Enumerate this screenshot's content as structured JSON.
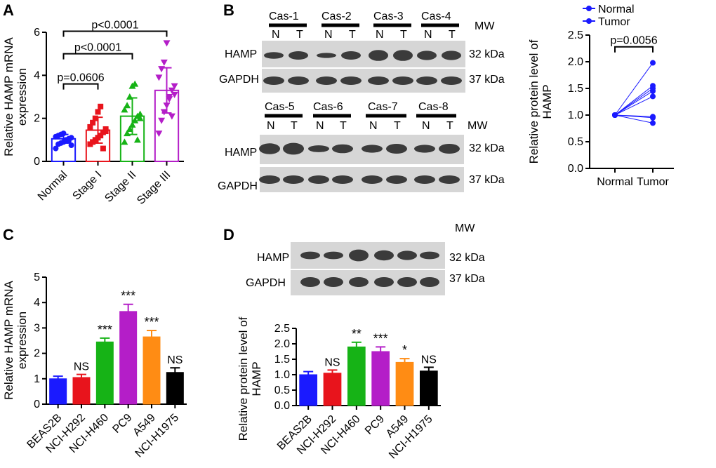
{
  "panels": [
    "A",
    "B",
    "C",
    "D"
  ],
  "chart_data": [
    {
      "id": "A",
      "type": "bar",
      "ylabel": "Relative HAMP mRNA expression",
      "ylim": [
        0,
        6
      ],
      "yticks": [
        0,
        2,
        4,
        6
      ],
      "categories": [
        "Normal",
        "Stage I",
        "Stage II",
        "Stage III"
      ],
      "values": [
        1.05,
        1.45,
        2.1,
        3.3
      ],
      "errors": [
        0.2,
        0.6,
        0.85,
        1.05
      ],
      "colors": [
        "#1a1aff",
        "#e8141c",
        "#16b316",
        "#b41ec8"
      ],
      "points": [
        [
          0.6,
          0.8,
          0.85,
          0.9,
          1.0,
          1.05,
          1.1,
          1.15,
          1.2,
          1.25,
          1.3,
          1.0,
          0.95,
          0.75
        ],
        [
          0.8,
          0.9,
          1.0,
          1.1,
          1.2,
          1.35,
          1.4,
          1.6,
          1.8,
          2.0,
          2.3,
          2.55,
          0.6,
          1.5
        ],
        [
          0.9,
          1.3,
          1.5,
          1.7,
          1.9,
          2.1,
          2.2,
          2.4,
          2.6,
          3.0,
          3.5,
          3.6,
          1.0,
          2.0
        ],
        [
          1.3,
          1.9,
          2.3,
          2.6,
          3.0,
          3.3,
          3.5,
          3.9,
          4.3,
          4.6,
          5.5,
          2.9,
          2.1,
          3.1
        ]
      ],
      "comparisons": [
        {
          "label": "p=0.0606",
          "from": 0,
          "to": 1,
          "y": 3.6
        },
        {
          "label": "p<0.0001",
          "from": 0,
          "to": 2,
          "y": 5.0
        },
        {
          "label": "p<0.0001",
          "from": 0,
          "to": 3,
          "y": 6.05
        }
      ]
    },
    {
      "id": "B",
      "type": "line",
      "ylabel": "Relative protein level of HAMP",
      "ylim": [
        0,
        2.5
      ],
      "yticks": [
        0.0,
        0.5,
        1.0,
        1.5,
        2.0,
        2.5
      ],
      "categories": [
        "Normal",
        "Tumor"
      ],
      "legend": [
        "Normal",
        "Tumor"
      ],
      "legend_position": "top-right",
      "color": "#1a1aff",
      "pairs": [
        [
          1,
          1.98
        ],
        [
          1,
          1.55
        ],
        [
          1,
          1.5
        ],
        [
          1,
          1.45
        ],
        [
          1,
          1.35
        ],
        [
          1,
          0.97
        ],
        [
          1,
          0.95
        ],
        [
          1,
          0.85
        ]
      ],
      "comparison": {
        "label": "p=0.0056",
        "y": 2.28
      }
    },
    {
      "id": "C",
      "type": "bar",
      "ylabel": "Relative HAMP mRNA expression",
      "ylim": [
        0,
        5
      ],
      "yticks": [
        0,
        1,
        2,
        3,
        4,
        5
      ],
      "categories": [
        "BEAS2B",
        "NCI-H292",
        "NCI-H460",
        "PC9",
        "A549",
        "NCI-H1975"
      ],
      "values": [
        1.0,
        1.05,
        2.45,
        3.65,
        2.65,
        1.25
      ],
      "errors": [
        0.1,
        0.12,
        0.15,
        0.28,
        0.25,
        0.18
      ],
      "colors": [
        "#1a1aff",
        "#e8141c",
        "#16b316",
        "#b41ec8",
        "#ff8c14",
        "#000000"
      ],
      "significance": [
        "",
        "NS",
        "***",
        "***",
        "***",
        "NS"
      ]
    },
    {
      "id": "D",
      "type": "bar",
      "ylabel": "Relative protein level of HAMP",
      "ylim": [
        0,
        2.5
      ],
      "yticks": [
        0.0,
        0.5,
        1.0,
        1.5,
        2.0,
        2.5
      ],
      "categories": [
        "BEAS2B",
        "NCI-H292",
        "NCI-H460",
        "PC9",
        "A549",
        "NCI-H1975"
      ],
      "values": [
        1.0,
        1.05,
        1.9,
        1.75,
        1.4,
        1.12
      ],
      "errors": [
        0.1,
        0.1,
        0.15,
        0.15,
        0.12,
        0.12
      ],
      "colors": [
        "#1a1aff",
        "#e8141c",
        "#16b316",
        "#b41ec8",
        "#ff8c14",
        "#000000"
      ],
      "significance": [
        "",
        "NS",
        "**",
        "***",
        "*",
        "NS"
      ]
    }
  ],
  "blots": {
    "B_top": {
      "cases": [
        "Cas-1",
        "Cas-2",
        "Cas-3",
        "Cas-4"
      ],
      "lanes": [
        "N",
        "T",
        "N",
        "T",
        "N",
        "T",
        "N",
        "T"
      ],
      "mw": "MW",
      "rows": [
        "HAMP",
        "GAPDH"
      ],
      "kda": [
        "32 kDa",
        "37 kDa"
      ]
    },
    "B_bottom": {
      "cases": [
        "Cas-5",
        "Cas-6",
        "Cas-7",
        "Cas-8"
      ],
      "lanes": [
        "N",
        "T",
        "N",
        "T",
        "N",
        "T",
        "N",
        "T"
      ],
      "mw": "MW",
      "rows": [
        "HAMP",
        "GAPDH"
      ],
      "kda": [
        "32 kDa",
        "37 kDa"
      ]
    },
    "D": {
      "mw": "MW",
      "rows": [
        "HAMP",
        "GAPDH"
      ],
      "kda": [
        "32 kDa",
        "37 kDa"
      ]
    }
  }
}
